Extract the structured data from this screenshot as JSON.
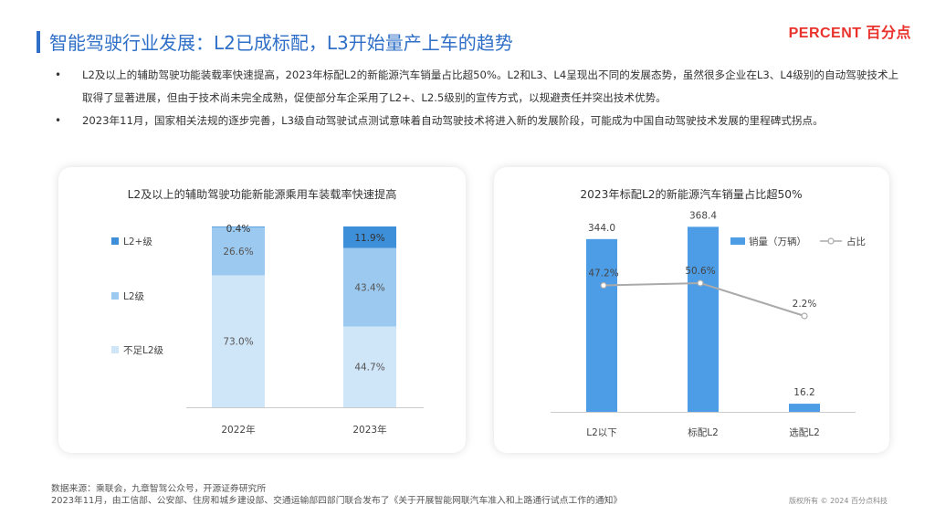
{
  "page": {
    "title": "智能驾驶行业发展：L2已成标配，L3开始量产上车的趋势",
    "brand": "PERCENT 百分点",
    "bullets": [
      "L2及以上的辅助驾驶功能装载率快速提高，2023年标配L2的新能源汽车销量占比超50%。L2和L3、L4呈现出不同的发展态势，虽然很多企业在L3、L4级别的自动驾驶技术上取得了显著进展，但由于技术尚未完全成熟，促使部分车企采用了L2+、L2.5级别的宣传方式，以规避责任并突出技术优势。",
      "2023年11月，国家相关法规的逐步完善，L3级自动驾驶试点测试意味着自动驾驶技术将进入新的发展阶段，可能成为中国自动驾驶技术发展的里程碑式拐点。"
    ],
    "bullet_mark": "•",
    "source_lines": [
      "数据来源：乘联会，九章智驾公众号，开源证券研究所",
      "2023年11月，由工信部、公安部、住房和城乡建设部、交通运输部四部门联合发布了《关于开展智能网联汽车准入和上路通行试点工作的通知》"
    ],
    "copyright": "版权所有 © 2024 百分点科技"
  },
  "colors": {
    "title_blue": "#2f6fc7",
    "brand_red": "#e8322b",
    "l2plus": "#3d8fd9",
    "l2": "#9cc9ef",
    "below_l2": "#cfe5f8",
    "bar": "#4d9de6",
    "line": "#aaaaaa"
  },
  "chart_data": [
    {
      "type": "bar",
      "stacked": true,
      "percent_stacked": true,
      "title": "L2及以上的辅助驾驶功能新能源乘用车装载率快速提高",
      "categories": [
        "2022年",
        "2023年"
      ],
      "series": [
        {
          "name": "不足L2级",
          "values": [
            73.0,
            44.7
          ],
          "labels": [
            "73.0%",
            "44.7%"
          ]
        },
        {
          "name": "L2级",
          "values": [
            26.6,
            43.4
          ],
          "labels": [
            "26.6%",
            "43.4%"
          ]
        },
        {
          "name": "L2+级",
          "values": [
            0.4,
            11.9
          ],
          "labels": [
            "0.4%",
            "11.9%"
          ]
        }
      ],
      "legend_order": [
        "L2+级",
        "L2级",
        "不足L2级"
      ],
      "legend": "left",
      "ylim": [
        0,
        100
      ],
      "grid": false
    },
    {
      "type": "bar",
      "combo": "bar+line",
      "title": "2023年标配L2的新能源汽车销量占比超50%",
      "categories": [
        "L2以下",
        "标配L2",
        "选配L2"
      ],
      "series": [
        {
          "name": "销量（万辆）",
          "type": "bar",
          "values": [
            344.0,
            368.4,
            16.2
          ],
          "labels": [
            "344.0",
            "368.4",
            "16.2"
          ]
        },
        {
          "name": "占比",
          "type": "line",
          "values": [
            47.2,
            50.6,
            2.2
          ],
          "labels": [
            "47.2%",
            "50.6%",
            "2.2%"
          ]
        }
      ],
      "legend": "top-right",
      "grid": false
    }
  ]
}
